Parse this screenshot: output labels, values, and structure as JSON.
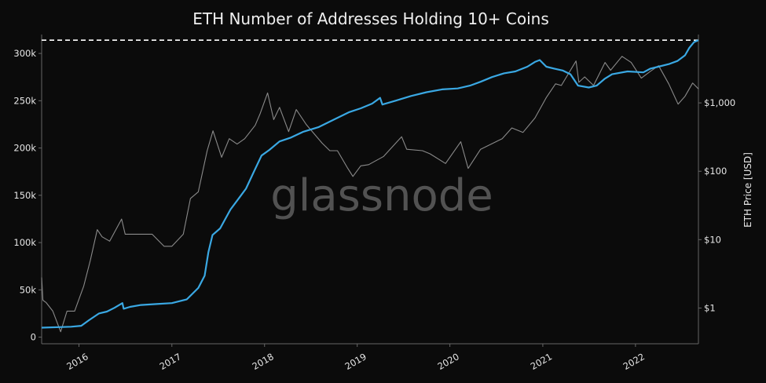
{
  "chart_data": {
    "type": "line",
    "title": "ETH Number of Addresses Holding 10+ Coins",
    "watermark": "glassnode",
    "y_left_ticks": [
      {
        "value": 0,
        "label": "0"
      },
      {
        "value": 50000,
        "label": "50k"
      },
      {
        "value": 100000,
        "label": "100k"
      },
      {
        "value": 150000,
        "label": "150k"
      },
      {
        "value": 200000,
        "label": "200k"
      },
      {
        "value": 250000,
        "label": "250k"
      },
      {
        "value": 300000,
        "label": "300k"
      }
    ],
    "y_left_range": [
      -7000,
      320000
    ],
    "y_right_label": "ETH Price [USD]",
    "y_right_scale": "log",
    "y_right_ticks": [
      {
        "value": 1,
        "label": "$1"
      },
      {
        "value": 10,
        "label": "$10"
      },
      {
        "value": 100,
        "label": "$100"
      },
      {
        "value": 1000,
        "label": "$1,000"
      }
    ],
    "y_right_range": [
      0.3,
      10000
    ],
    "x_ticks": [
      "2016",
      "2017",
      "2018",
      "2019",
      "2020",
      "2021",
      "2022"
    ],
    "x_range": [
      "2015-08-07",
      "2022-09-06"
    ],
    "ath_line": 314000,
    "colors": {
      "addresses": "#3aa8e3",
      "price": "#8a8a8a",
      "ath": "#ffffff",
      "axes": "#666666"
    },
    "series": [
      {
        "name": "Addresses Holding 10+ Coins",
        "axis": "left",
        "points": [
          [
            "2015-08-07",
            10000
          ],
          [
            "2015-12-01",
            11000
          ],
          [
            "2016-01-10",
            12000
          ],
          [
            "2016-02-10",
            18000
          ],
          [
            "2016-03-20",
            25000
          ],
          [
            "2016-04-20",
            27000
          ],
          [
            "2016-05-20",
            31000
          ],
          [
            "2016-06-20",
            36000
          ],
          [
            "2016-06-25",
            30000
          ],
          [
            "2016-07-20",
            32000
          ],
          [
            "2016-09-01",
            34000
          ],
          [
            "2016-11-01",
            35000
          ],
          [
            "2017-01-01",
            36000
          ],
          [
            "2017-03-01",
            40000
          ],
          [
            "2017-04-15",
            52000
          ],
          [
            "2017-05-10",
            65000
          ],
          [
            "2017-05-25",
            90000
          ],
          [
            "2017-06-10",
            108000
          ],
          [
            "2017-07-10",
            115000
          ],
          [
            "2017-08-20",
            135000
          ],
          [
            "2017-09-25",
            148000
          ],
          [
            "2017-10-20",
            157000
          ],
          [
            "2017-11-20",
            175000
          ],
          [
            "2017-12-20",
            192000
          ],
          [
            "2018-01-20",
            198000
          ],
          [
            "2018-03-01",
            207000
          ],
          [
            "2018-04-15",
            211000
          ],
          [
            "2018-06-01",
            217000
          ],
          [
            "2018-08-01",
            222000
          ],
          [
            "2018-10-01",
            230000
          ],
          [
            "2018-12-01",
            238000
          ],
          [
            "2019-01-15",
            242000
          ],
          [
            "2019-03-01",
            247000
          ],
          [
            "2019-04-01",
            253000
          ],
          [
            "2019-04-10",
            246000
          ],
          [
            "2019-06-01",
            250000
          ],
          [
            "2019-08-01",
            255000
          ],
          [
            "2019-10-01",
            259000
          ],
          [
            "2019-12-01",
            262000
          ],
          [
            "2020-02-01",
            263000
          ],
          [
            "2020-03-20",
            266000
          ],
          [
            "2020-05-01",
            270000
          ],
          [
            "2020-06-15",
            275000
          ],
          [
            "2020-08-01",
            279000
          ],
          [
            "2020-09-15",
            281000
          ],
          [
            "2020-11-01",
            286000
          ],
          [
            "2020-12-01",
            291000
          ],
          [
            "2020-12-20",
            293000
          ],
          [
            "2021-01-15",
            286000
          ],
          [
            "2021-02-15",
            284000
          ],
          [
            "2021-03-20",
            282000
          ],
          [
            "2021-04-20",
            278000
          ],
          [
            "2021-05-20",
            266000
          ],
          [
            "2021-07-01",
            264000
          ],
          [
            "2021-08-01",
            266000
          ],
          [
            "2021-09-01",
            273000
          ],
          [
            "2021-10-01",
            278000
          ],
          [
            "2021-12-01",
            281000
          ],
          [
            "2022-02-01",
            280000
          ],
          [
            "2022-03-01",
            284000
          ],
          [
            "2022-04-01",
            286000
          ],
          [
            "2022-05-15",
            289000
          ],
          [
            "2022-06-15",
            292000
          ],
          [
            "2022-07-15",
            298000
          ],
          [
            "2022-08-01",
            306000
          ],
          [
            "2022-08-20",
            312000
          ],
          [
            "2022-09-06",
            314000
          ]
        ]
      },
      {
        "name": "ETH Price [USD]",
        "axis": "right",
        "points": [
          [
            "2015-08-07",
            2.8
          ],
          [
            "2015-08-12",
            1.3
          ],
          [
            "2015-08-25",
            1.2
          ],
          [
            "2015-09-20",
            0.9
          ],
          [
            "2015-10-21",
            0.45
          ],
          [
            "2015-11-15",
            0.9
          ],
          [
            "2015-12-15",
            0.9
          ],
          [
            "2016-01-20",
            2.1
          ],
          [
            "2016-02-15",
            5.0
          ],
          [
            "2016-03-13",
            14.0
          ],
          [
            "2016-04-01",
            11.0
          ],
          [
            "2016-05-01",
            9.5
          ],
          [
            "2016-06-17",
            20.0
          ],
          [
            "2016-07-01",
            12.0
          ],
          [
            "2016-08-01",
            12.0
          ],
          [
            "2016-09-01",
            12.0
          ],
          [
            "2016-10-15",
            12.0
          ],
          [
            "2016-12-01",
            8.0
          ],
          [
            "2017-01-01",
            8.0
          ],
          [
            "2017-02-15",
            12.0
          ],
          [
            "2017-03-15",
            40.0
          ],
          [
            "2017-04-15",
            50.0
          ],
          [
            "2017-05-20",
            200.0
          ],
          [
            "2017-06-12",
            390.0
          ],
          [
            "2017-07-16",
            160.0
          ],
          [
            "2017-08-15",
            300.0
          ],
          [
            "2017-09-15",
            250.0
          ],
          [
            "2017-10-15",
            300.0
          ],
          [
            "2017-11-25",
            470.0
          ],
          [
            "2017-12-15",
            700.0
          ],
          [
            "2018-01-13",
            1400.0
          ],
          [
            "2018-02-06",
            570.0
          ],
          [
            "2018-03-01",
            860.0
          ],
          [
            "2018-04-06",
            380.0
          ],
          [
            "2018-05-06",
            800.0
          ],
          [
            "2018-06-15",
            480.0
          ],
          [
            "2018-08-15",
            260.0
          ],
          [
            "2018-09-15",
            200.0
          ],
          [
            "2018-10-15",
            200.0
          ],
          [
            "2018-11-25",
            110.0
          ],
          [
            "2018-12-15",
            84.0
          ],
          [
            "2019-01-15",
            120.0
          ],
          [
            "2019-02-15",
            125.0
          ],
          [
            "2019-04-15",
            165.0
          ],
          [
            "2019-06-25",
            320.0
          ],
          [
            "2019-07-15",
            210.0
          ],
          [
            "2019-09-15",
            200.0
          ],
          [
            "2019-10-15",
            180.0
          ],
          [
            "2019-12-15",
            130.0
          ],
          [
            "2020-02-13",
            270.0
          ],
          [
            "2020-03-13",
            110.0
          ],
          [
            "2020-05-01",
            210.0
          ],
          [
            "2020-07-25",
            300.0
          ],
          [
            "2020-09-01",
            430.0
          ],
          [
            "2020-10-15",
            370.0
          ],
          [
            "2020-12-01",
            600.0
          ],
          [
            "2021-01-15",
            1200.0
          ],
          [
            "2021-02-20",
            1900.0
          ],
          [
            "2021-03-15",
            1800.0
          ],
          [
            "2021-05-12",
            4100.0
          ],
          [
            "2021-05-23",
            2000.0
          ],
          [
            "2021-06-15",
            2400.0
          ],
          [
            "2021-07-20",
            1800.0
          ],
          [
            "2021-09-03",
            3900.0
          ],
          [
            "2021-09-25",
            3000.0
          ],
          [
            "2021-11-09",
            4800.0
          ],
          [
            "2021-12-15",
            3900.0
          ],
          [
            "2022-01-24",
            2300.0
          ],
          [
            "2022-03-01",
            2900.0
          ],
          [
            "2022-04-02",
            3500.0
          ],
          [
            "2022-05-12",
            1900.0
          ],
          [
            "2022-06-18",
            960.0
          ],
          [
            "2022-07-15",
            1250.0
          ],
          [
            "2022-08-14",
            1950.0
          ],
          [
            "2022-09-06",
            1600.0
          ]
        ]
      }
    ]
  }
}
